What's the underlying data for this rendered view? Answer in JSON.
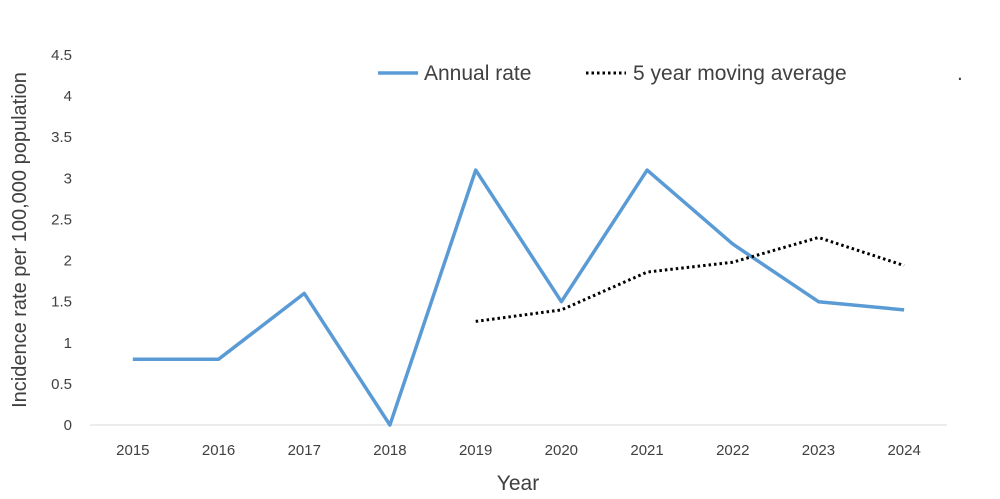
{
  "chart_data": {
    "type": "line",
    "title": "",
    "xlabel": "Year",
    "ylabel": "Incidence rate per 100,000 population",
    "categories": [
      "2015",
      "2016",
      "2017",
      "2018",
      "2019",
      "2020",
      "2021",
      "2022",
      "2023",
      "2024"
    ],
    "y_ticks": [
      "0",
      "0.5",
      "1",
      "1.5",
      "2",
      "2.5",
      "3",
      "3.5",
      "4",
      "4.5"
    ],
    "ylim": [
      0,
      4.5
    ],
    "grid": false,
    "legend_position": "top",
    "legend_trailing_mark": ".",
    "series": [
      {
        "name": "Annual rate",
        "style": "solid",
        "color": "#5B9BD5",
        "values": [
          0.8,
          0.8,
          1.6,
          0.0,
          3.1,
          1.5,
          3.1,
          2.2,
          1.5,
          1.4
        ]
      },
      {
        "name": "5 year moving average",
        "style": "dotted",
        "color": "#000000",
        "values": [
          null,
          null,
          null,
          null,
          1.26,
          1.4,
          1.86,
          1.98,
          2.28,
          1.94
        ]
      }
    ]
  }
}
